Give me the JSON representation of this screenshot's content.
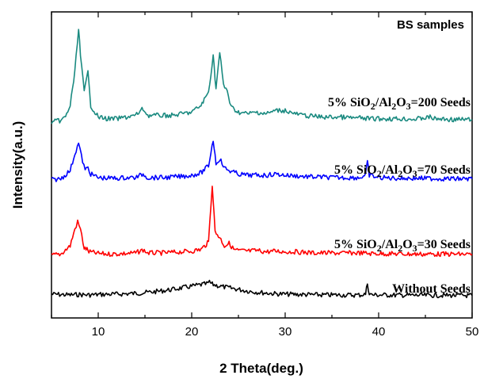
{
  "chart_data": {
    "type": "line",
    "title": "BS samples",
    "xlabel": "2 Theta(deg.)",
    "ylabel": "Intensity(a.u.)",
    "xlim": [
      5,
      50
    ],
    "xticks": [
      10,
      20,
      30,
      40,
      50
    ],
    "y_tick_labels": false,
    "grid": false,
    "series": [
      {
        "name": "Without Seeds",
        "label_parts": [
          "Without Seeds"
        ],
        "color": "#000000",
        "points": [
          [
            5,
            0.07
          ],
          [
            6,
            0.065
          ],
          [
            7,
            0.06
          ],
          [
            8,
            0.065
          ],
          [
            9,
            0.06
          ],
          [
            10,
            0.065
          ],
          [
            11,
            0.068
          ],
          [
            12,
            0.07
          ],
          [
            13,
            0.075
          ],
          [
            14,
            0.08
          ],
          [
            15,
            0.09
          ],
          [
            16,
            0.1
          ],
          [
            17,
            0.115
          ],
          [
            18,
            0.13
          ],
          [
            19,
            0.15
          ],
          [
            20,
            0.17
          ],
          [
            21,
            0.19
          ],
          [
            21.6,
            0.2
          ],
          [
            21.9,
            0.22
          ],
          [
            22.2,
            0.195
          ],
          [
            23,
            0.17
          ],
          [
            24,
            0.15
          ],
          [
            25,
            0.13
          ],
          [
            26,
            0.11
          ],
          [
            27,
            0.095
          ],
          [
            28,
            0.085
          ],
          [
            29,
            0.075
          ],
          [
            30,
            0.07
          ],
          [
            32,
            0.065
          ],
          [
            34,
            0.06
          ],
          [
            36,
            0.06
          ],
          [
            37,
            0.058
          ],
          [
            38,
            0.06
          ],
          [
            38.6,
            0.07
          ],
          [
            38.8,
            0.21
          ],
          [
            39,
            0.07
          ],
          [
            39.4,
            0.06
          ],
          [
            40,
            0.06
          ],
          [
            42,
            0.058
          ],
          [
            44,
            0.056
          ],
          [
            46,
            0.055
          ],
          [
            48,
            0.055
          ],
          [
            50,
            0.053
          ]
        ]
      },
      {
        "name": "5% SiO2/Al2O3=30 Seeds",
        "label_parts": [
          "5% SiO",
          "2",
          "/Al",
          "2",
          "O",
          "3",
          "=30 Seeds"
        ],
        "color": "#ff0000",
        "points": [
          [
            5,
            0.0
          ],
          [
            6,
            0.01
          ],
          [
            7,
            0.08
          ],
          [
            7.5,
            0.22
          ],
          [
            7.8,
            0.28
          ],
          [
            8.1,
            0.22
          ],
          [
            8.5,
            0.06
          ],
          [
            8.8,
            0.05
          ],
          [
            9,
            0.03
          ],
          [
            10,
            0.015
          ],
          [
            11,
            0.01
          ],
          [
            12,
            0.012
          ],
          [
            13,
            0.015
          ],
          [
            14,
            0.02
          ],
          [
            14.8,
            0.045
          ],
          [
            15.3,
            0.02
          ],
          [
            16,
            0.02
          ],
          [
            17,
            0.02
          ],
          [
            18,
            0.025
          ],
          [
            19,
            0.03
          ],
          [
            20,
            0.035
          ],
          [
            21,
            0.05
          ],
          [
            21.8,
            0.11
          ],
          [
            22.2,
            0.6
          ],
          [
            22.5,
            0.2
          ],
          [
            23,
            0.15
          ],
          [
            23.5,
            0.08
          ],
          [
            24,
            0.1
          ],
          [
            24.5,
            0.05
          ],
          [
            25,
            0.04
          ],
          [
            26,
            0.035
          ],
          [
            27,
            0.04
          ],
          [
            28,
            0.03
          ],
          [
            29,
            0.035
          ],
          [
            30,
            0.03
          ],
          [
            31,
            0.03
          ],
          [
            32,
            0.025
          ],
          [
            33,
            0.02
          ],
          [
            34,
            0.02
          ],
          [
            35,
            0.02
          ],
          [
            36,
            0.018
          ],
          [
            37,
            0.02
          ],
          [
            38,
            0.02
          ],
          [
            39,
            0.015
          ],
          [
            40,
            0.015
          ],
          [
            42,
            0.012
          ],
          [
            44,
            0.01
          ],
          [
            46,
            0.01
          ],
          [
            48,
            0.01
          ],
          [
            50,
            0.008
          ]
        ]
      },
      {
        "name": "5% SiO2/Al2O3=70 Seeds",
        "label_parts": [
          "5% SiO",
          "2",
          "/Al",
          "2",
          "O",
          "3",
          "=70 Seeds"
        ],
        "color": "#0000ff",
        "points": [
          [
            5,
            0.0
          ],
          [
            6,
            0.01
          ],
          [
            7,
            0.08
          ],
          [
            7.5,
            0.22
          ],
          [
            7.9,
            0.31
          ],
          [
            8.2,
            0.2
          ],
          [
            8.6,
            0.08
          ],
          [
            8.9,
            0.11
          ],
          [
            9.2,
            0.05
          ],
          [
            10,
            0.02
          ],
          [
            11,
            0.015
          ],
          [
            12,
            0.015
          ],
          [
            13,
            0.02
          ],
          [
            14,
            0.02
          ],
          [
            14.8,
            0.05
          ],
          [
            15.3,
            0.02
          ],
          [
            16,
            0.02
          ],
          [
            17,
            0.02
          ],
          [
            18,
            0.025
          ],
          [
            19,
            0.03
          ],
          [
            20,
            0.04
          ],
          [
            21,
            0.06
          ],
          [
            21.8,
            0.12
          ],
          [
            22.3,
            0.34
          ],
          [
            22.6,
            0.14
          ],
          [
            23,
            0.18
          ],
          [
            23.5,
            0.1
          ],
          [
            24,
            0.08
          ],
          [
            25,
            0.05
          ],
          [
            26,
            0.04
          ],
          [
            27,
            0.04
          ],
          [
            28,
            0.04
          ],
          [
            29,
            0.05
          ],
          [
            30,
            0.04
          ],
          [
            31,
            0.035
          ],
          [
            32,
            0.03
          ],
          [
            33,
            0.025
          ],
          [
            34,
            0.025
          ],
          [
            35,
            0.02
          ],
          [
            36,
            0.02
          ],
          [
            37,
            0.02
          ],
          [
            38,
            0.02
          ],
          [
            38.6,
            0.04
          ],
          [
            38.8,
            0.15
          ],
          [
            39,
            0.04
          ],
          [
            40,
            0.02
          ],
          [
            42,
            0.015
          ],
          [
            44,
            0.015
          ],
          [
            46,
            0.012
          ],
          [
            48,
            0.01
          ],
          [
            50,
            0.01
          ]
        ]
      },
      {
        "name": "5% SiO2/Al2O3=200 Seeds",
        "label_parts": [
          "5% SiO",
          "2",
          "/Al",
          "2",
          "O",
          "3",
          "=200 Seeds"
        ],
        "color": "#1a8a80",
        "points": [
          [
            5,
            0.0
          ],
          [
            6,
            0.01
          ],
          [
            6.5,
            0.03
          ],
          [
            7,
            0.1
          ],
          [
            7.5,
            0.3
          ],
          [
            7.9,
            0.57
          ],
          [
            8.1,
            0.4
          ],
          [
            8.5,
            0.18
          ],
          [
            8.9,
            0.3
          ],
          [
            9.2,
            0.1
          ],
          [
            10,
            0.03
          ],
          [
            11,
            0.02
          ],
          [
            12,
            0.02
          ],
          [
            13,
            0.03
          ],
          [
            14,
            0.04
          ],
          [
            14.8,
            0.08
          ],
          [
            15.3,
            0.04
          ],
          [
            16,
            0.04
          ],
          [
            17,
            0.04
          ],
          [
            18,
            0.04
          ],
          [
            19,
            0.05
          ],
          [
            20,
            0.06
          ],
          [
            21,
            0.1
          ],
          [
            21.8,
            0.18
          ],
          [
            22.3,
            0.4
          ],
          [
            22.6,
            0.2
          ],
          [
            23,
            0.42
          ],
          [
            23.4,
            0.22
          ],
          [
            23.8,
            0.19
          ],
          [
            24.2,
            0.09
          ],
          [
            25,
            0.06
          ],
          [
            26,
            0.05
          ],
          [
            27,
            0.06
          ],
          [
            28,
            0.05
          ],
          [
            29,
            0.07
          ],
          [
            30,
            0.07
          ],
          [
            31,
            0.05
          ],
          [
            32,
            0.04
          ],
          [
            33,
            0.035
          ],
          [
            34,
            0.03
          ],
          [
            35,
            0.03
          ],
          [
            36,
            0.03
          ],
          [
            37,
            0.025
          ],
          [
            38,
            0.025
          ],
          [
            39,
            0.02
          ],
          [
            40,
            0.02
          ],
          [
            42,
            0.02
          ],
          [
            44,
            0.018
          ],
          [
            45.5,
            0.03
          ],
          [
            46,
            0.02
          ],
          [
            48,
            0.015
          ],
          [
            50,
            0.015
          ]
        ]
      }
    ]
  }
}
